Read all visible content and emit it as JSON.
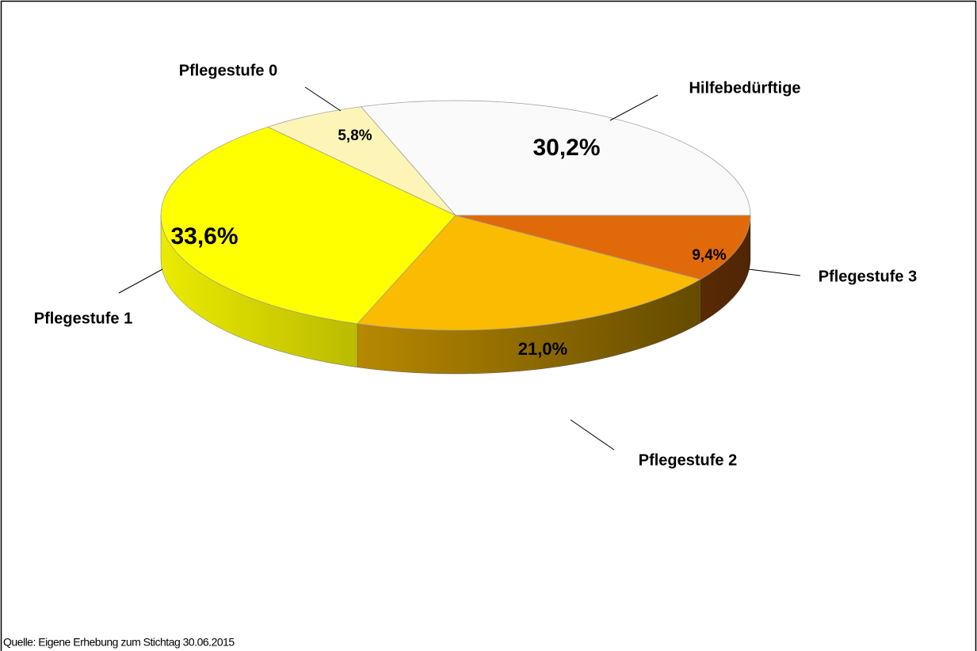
{
  "chart_data": {
    "type": "pie",
    "categories": [
      "Hilfebedürftige",
      "Pflegestufe 0",
      "Pflegestufe 1",
      "Pflegestufe 2",
      "Pflegestufe 3"
    ],
    "values": [
      30.2,
      5.8,
      33.6,
      21.0,
      9.4
    ],
    "value_labels": [
      "30,2%",
      "5,8%",
      "33,6%",
      "21,0%",
      "9,4%"
    ],
    "colors": [
      "#fafafa",
      "#fdf5b8",
      "#ffff00",
      "#fbbb00",
      "#e06a0a"
    ],
    "note": "Quelle: Eigene Erhebung zum Stichtag 30.06.2015"
  }
}
